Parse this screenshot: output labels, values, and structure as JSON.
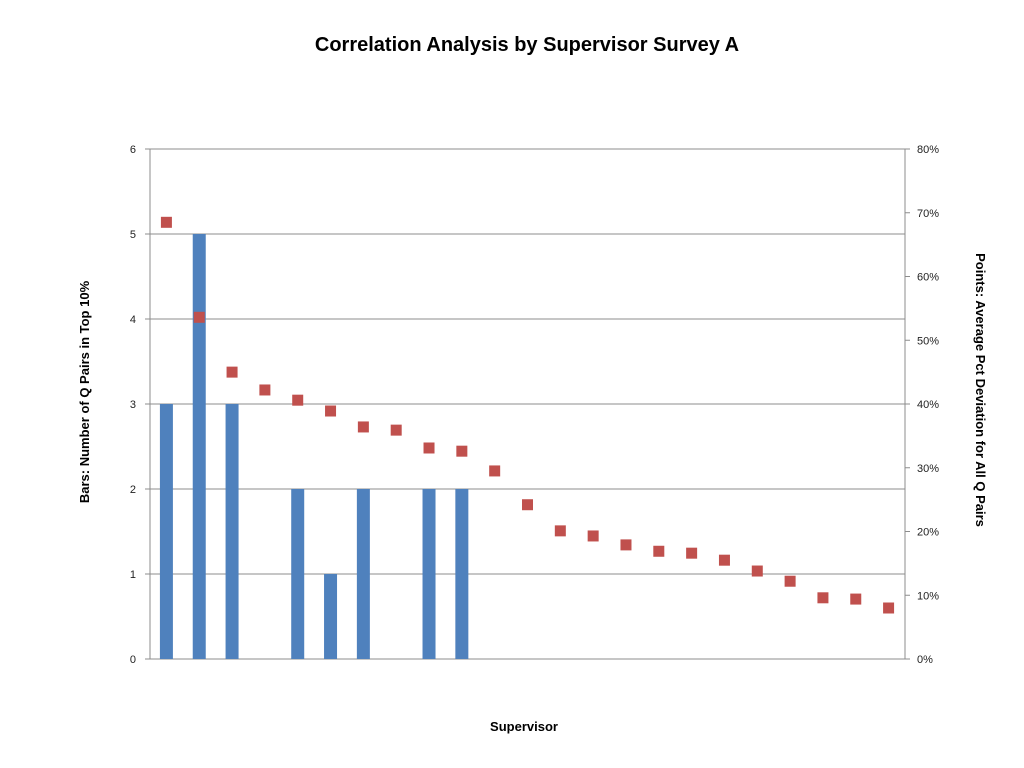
{
  "chart_data": {
    "type": "bar+scatter",
    "title": "Correlation Analysis by Supervisor Survey A",
    "xlabel": "Supervisor",
    "ylabel_left": "Bars: Number of Q Pairs in Top 10%",
    "ylabel_right": "Points: Average Pct Deviation for All Q Pairs",
    "ylim_left": [
      0,
      6
    ],
    "ylim_right": [
      0,
      80
    ],
    "left_ticks": [
      "0",
      "1",
      "2",
      "3",
      "4",
      "5",
      "6"
    ],
    "right_ticks": [
      "0%",
      "10%",
      "20%",
      "30%",
      "40%",
      "50%",
      "60%",
      "70%",
      "80%"
    ],
    "grid": true,
    "bar_color": "#4F81BD",
    "point_color": "#C0504D",
    "bars": [
      3,
      5,
      3,
      0,
      2,
      1,
      2,
      0,
      2,
      2,
      0,
      0,
      0,
      0,
      0,
      0,
      0,
      0,
      0,
      0,
      0,
      0,
      0
    ],
    "points": [
      68.5,
      53.6,
      45.0,
      42.2,
      40.6,
      38.9,
      36.4,
      35.9,
      33.1,
      32.6,
      29.5,
      24.2,
      20.1,
      19.3,
      17.9,
      16.9,
      16.6,
      15.5,
      13.8,
      12.2,
      9.6,
      9.4,
      8.0
    ]
  }
}
